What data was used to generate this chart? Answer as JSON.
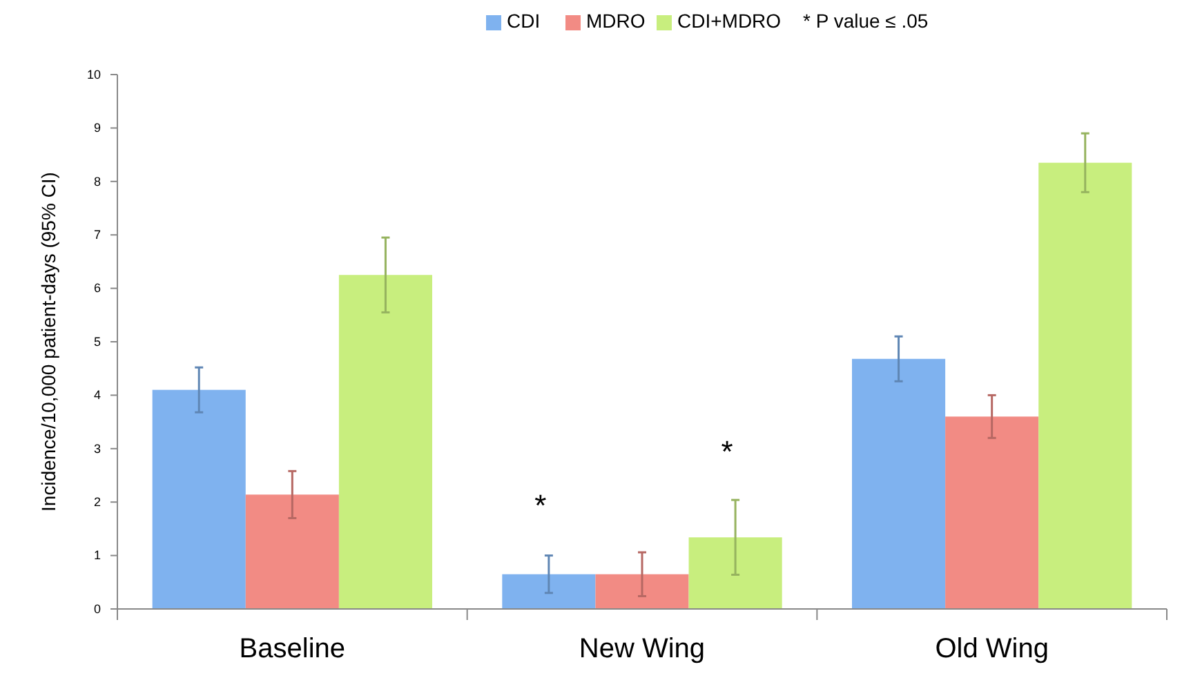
{
  "chart_data": {
    "type": "bar",
    "ylabel": "Incidence/10,000 patient-days (95% CI)",
    "categories": [
      "Baseline",
      "New Wing",
      "Old Wing"
    ],
    "series": [
      {
        "name": "CDI",
        "color": "#7fb2ef",
        "values": [
          4.1,
          0.65,
          4.68
        ],
        "errors": [
          0.42,
          0.35,
          0.42
        ]
      },
      {
        "name": "MDRO",
        "color": "#f28b84",
        "values": [
          2.14,
          0.65,
          3.6
        ],
        "errors": [
          0.44,
          0.41,
          0.4
        ]
      },
      {
        "name": "CDI+MDRO",
        "color": "#c8ee7e",
        "values": [
          6.25,
          1.34,
          8.35
        ],
        "errors": [
          0.7,
          0.7,
          0.55
        ]
      }
    ],
    "ylim": [
      0,
      10
    ],
    "yticks": [
      0,
      1,
      2,
      3,
      4,
      5,
      6,
      7,
      8,
      9,
      10
    ],
    "grid": false,
    "legend": "top",
    "annotations": [
      "* P value ≤ .05",
      "*",
      "*"
    ]
  }
}
